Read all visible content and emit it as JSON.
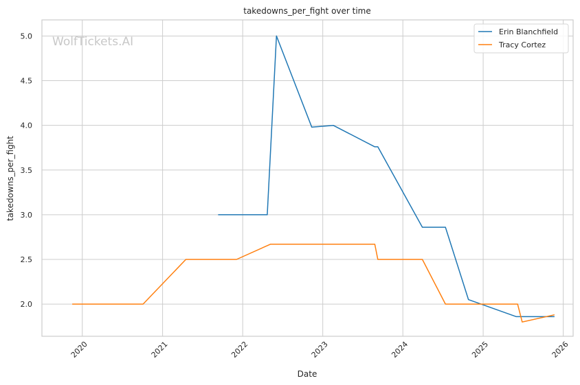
{
  "watermark": "WolfTickets.AI",
  "chart_data": {
    "type": "line",
    "title": "takedowns_per_fight over time",
    "xlabel": "Date",
    "ylabel": "takedowns_per_fight",
    "x_type": "date",
    "xlim": [
      "2019-07-01",
      "2026-02-15"
    ],
    "ylim": [
      1.64,
      5.18
    ],
    "x_ticks": [
      "2020-01-01",
      "2021-01-01",
      "2022-01-01",
      "2023-01-01",
      "2024-01-01",
      "2025-01-01",
      "2026-01-01"
    ],
    "x_tick_labels": [
      "2020",
      "2021",
      "2022",
      "2023",
      "2024",
      "2025",
      "2026"
    ],
    "y_ticks": [
      2.0,
      2.5,
      3.0,
      3.5,
      4.0,
      4.5,
      5.0
    ],
    "y_tick_labels": [
      "2.0",
      "2.5",
      "3.0",
      "3.5",
      "4.0",
      "4.5",
      "5.0"
    ],
    "grid": true,
    "legend_position": "top-right",
    "colors": {
      "Erin Blanchfield": "#1f77b4",
      "Tracy Cortez": "#ff7f0e",
      "grid": "#cccccc",
      "spine": "#cccccc"
    },
    "series": [
      {
        "name": "Erin Blanchfield",
        "color": "#1f77b4",
        "x": [
          "2021-09-11",
          "2022-04-23",
          "2022-06-04",
          "2022-11-12",
          "2023-02-18",
          "2023-08-26",
          "2023-09-09",
          "2024-03-30",
          "2024-07-13",
          "2024-10-26",
          "2025-06-01",
          "2025-11-22"
        ],
        "y": [
          3.0,
          3.0,
          5.0,
          3.98,
          4.0,
          3.76,
          3.76,
          2.86,
          2.86,
          2.05,
          1.86,
          1.86
        ]
      },
      {
        "name": "Tracy Cortez",
        "color": "#ff7f0e",
        "x": [
          "2019-11-16",
          "2020-10-04",
          "2021-04-17",
          "2021-12-04",
          "2022-05-07",
          "2023-08-26",
          "2023-09-09",
          "2024-03-30",
          "2024-07-13",
          "2025-06-07",
          "2025-06-28",
          "2025-11-22"
        ],
        "y": [
          2.0,
          2.0,
          2.5,
          2.5,
          2.67,
          2.67,
          2.5,
          2.5,
          2.0,
          2.0,
          1.8,
          1.88
        ]
      }
    ]
  }
}
